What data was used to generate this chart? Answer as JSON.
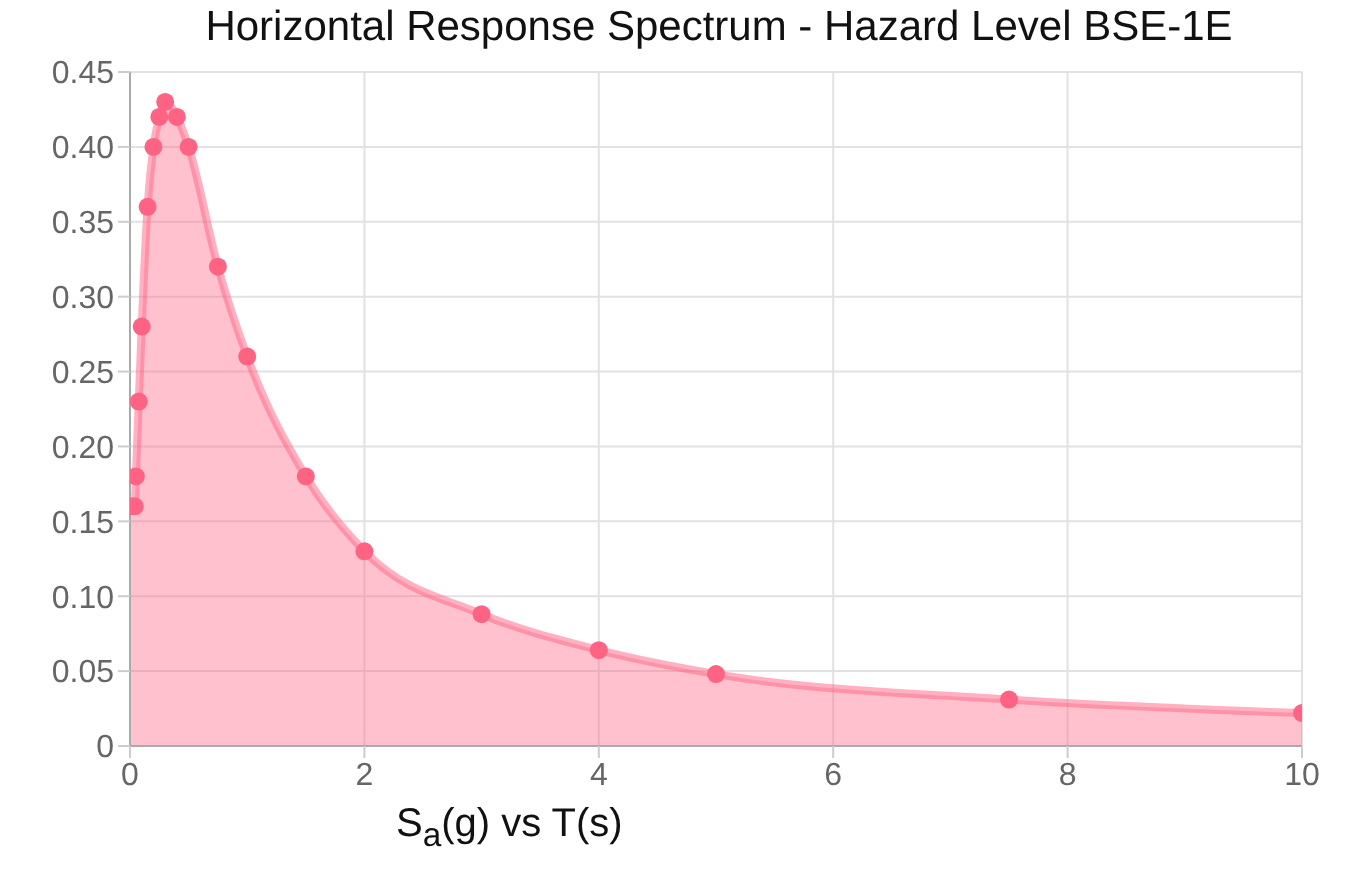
{
  "chart_data": {
    "type": "area",
    "title": "Horizontal Response Spectrum - Hazard Level BSE-1E",
    "xlabel": "S$_{a}$(g) vs T(s)",
    "x": [
      0,
      0.04,
      0.05,
      0.075,
      0.1,
      0.15,
      0.2,
      0.25,
      0.3,
      0.4,
      0.5,
      0.75,
      1,
      1.5,
      2,
      3,
      4,
      5,
      7.5,
      10
    ],
    "series": [
      {
        "color": "#ff6384",
        "values": [
          0.16,
          0.16,
          0.18,
          0.23,
          0.28,
          0.36,
          0.4,
          0.42,
          0.43,
          0.42,
          0.4,
          0.32,
          0.26,
          0.18,
          0.13,
          0.088,
          0.064,
          0.048,
          0.031,
          0.022
        ]
      }
    ],
    "xlim": [
      0,
      10
    ],
    "xticks": [
      0,
      2,
      4,
      6,
      8,
      10
    ],
    "ylim": [
      0,
      0.45
    ],
    "yticks": [
      0,
      0.05,
      {
        "value": 0.1,
        "label": "0.10"
      },
      0.15,
      {
        "value": 0.2,
        "label": "0.20"
      },
      0.25,
      {
        "value": 0.3,
        "label": "0.30"
      },
      0.35,
      {
        "value": 0.4,
        "label": "0.40"
      },
      0.45
    ],
    "grid": true,
    "marker": "circle"
  }
}
